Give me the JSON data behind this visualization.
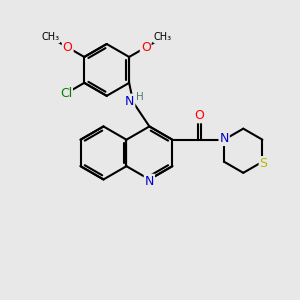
{
  "bg_color": "#e8e8e8",
  "atom_colors": {
    "N": "#0000cd",
    "O": "#ff0000",
    "S": "#b8b800",
    "Cl": "#008000",
    "C": "#000000",
    "H": "#557777"
  },
  "bond_lw": 1.5,
  "font_size": 9.0
}
